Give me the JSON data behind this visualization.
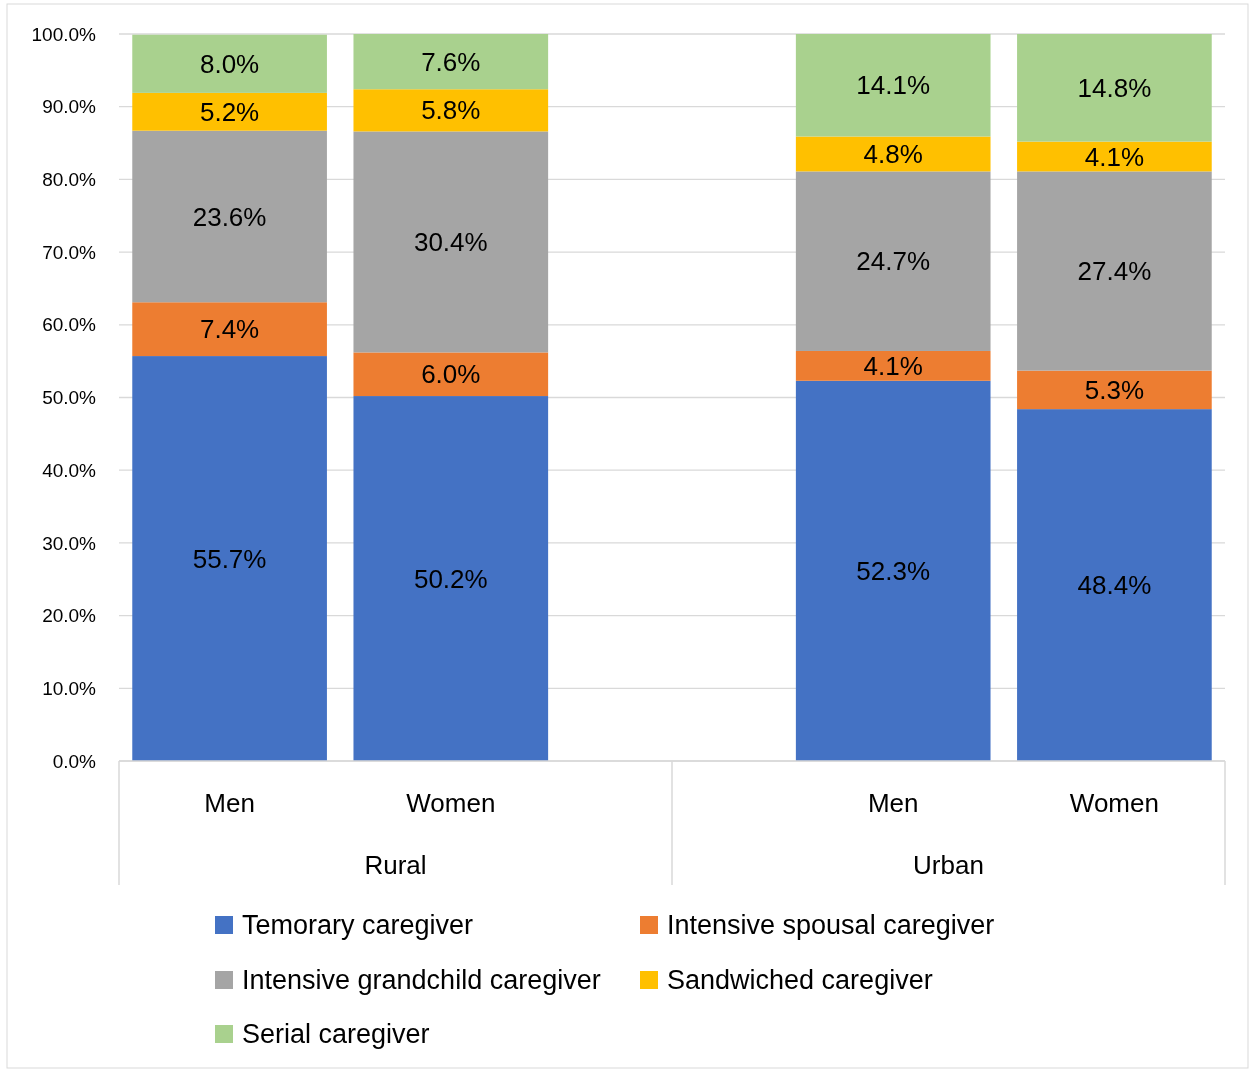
{
  "chart_data": {
    "type": "bar",
    "stacked": true,
    "categories": [
      "Men",
      "Women",
      null,
      "Men",
      "Women"
    ],
    "annotations": [
      "Rural",
      "Urban"
    ],
    "series": [
      {
        "name": "Temorary caregiver",
        "color": "#4472c4",
        "values": [
          55.7,
          50.2,
          null,
          52.3,
          48.4
        ],
        "value_labels": [
          "55.7%",
          "50.2%",
          null,
          "52.3%",
          "48.4%"
        ]
      },
      {
        "name": "Intensive spousal caregiver",
        "color": "#ed7d31",
        "values": [
          7.4,
          6.0,
          null,
          4.1,
          5.3
        ],
        "value_labels": [
          "7.4%",
          "6.0%",
          null,
          "4.1%",
          "5.3%"
        ]
      },
      {
        "name": "Intensive grandchild caregiver",
        "color": "#a5a5a5",
        "values": [
          23.6,
          30.4,
          null,
          24.7,
          27.4
        ],
        "value_labels": [
          "23.6%",
          "30.4%",
          null,
          "24.7%",
          "27.4%"
        ]
      },
      {
        "name": "Sandwiched caregiver",
        "color": "#ffc000",
        "values": [
          5.2,
          5.8,
          null,
          4.8,
          4.1
        ],
        "value_labels": [
          "5.2%",
          "5.8%",
          null,
          "4.8%",
          "4.1%"
        ]
      },
      {
        "name": "Serial caregiver",
        "color": "#a9d18e",
        "values": [
          8.0,
          7.6,
          null,
          14.1,
          14.8
        ],
        "value_labels": [
          "8.0%",
          "7.6%",
          null,
          "14.1%",
          "14.8%"
        ]
      }
    ],
    "ylim": [
      0,
      100
    ],
    "yticks": [
      {
        "value": 0,
        "label": "0.0%"
      },
      {
        "value": 10,
        "label": "10.0%"
      },
      {
        "value": 20,
        "label": "20.0%"
      },
      {
        "value": 30,
        "label": "30.0%"
      },
      {
        "value": 40,
        "label": "40.0%"
      },
      {
        "value": 50,
        "label": "50.0%"
      },
      {
        "value": 60,
        "label": "60.0%"
      },
      {
        "value": 70,
        "label": "70.0%"
      },
      {
        "value": 80,
        "label": "80.0%"
      },
      {
        "value": 90,
        "label": "90.0%"
      },
      {
        "value": 100,
        "label": "100.0%"
      }
    ],
    "grid": "y",
    "legend": "bottom"
  }
}
